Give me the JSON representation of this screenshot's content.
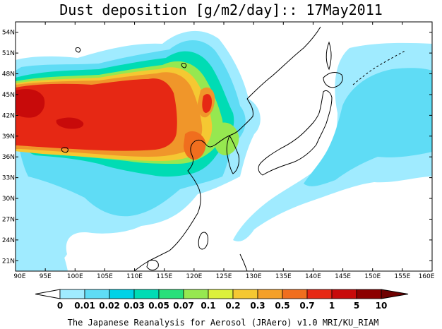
{
  "title": "Dust deposition [g/m2/day]:: 17May2011",
  "credit": "The Japanese Reanalysis for Aerosol (JRAero) v1.0 MRI/KU_RIAM",
  "map": {
    "lon_range": [
      90,
      160
    ],
    "lat_range": [
      19.5,
      55.5
    ],
    "lon_ticks": [
      "90E",
      "95E",
      "100E",
      "105E",
      "110E",
      "115E",
      "120E",
      "125E",
      "130E",
      "135E",
      "140E",
      "145E",
      "150E",
      "155E",
      "160E"
    ],
    "lat_ticks": [
      "54N",
      "51N",
      "48N",
      "45N",
      "42N",
      "39N",
      "36N",
      "33N",
      "30N",
      "27N",
      "24N",
      "21N"
    ]
  },
  "colorbar": {
    "labels": [
      "0",
      "0.01",
      "0.02",
      "0.03",
      "0.05",
      "0.07",
      "0.1",
      "0.2",
      "0.3",
      "0.5",
      "0.7",
      "1",
      "5",
      "10"
    ],
    "colors": [
      "#ffffff",
      "#a0ebff",
      "#5fdcf5",
      "#00d2e6",
      "#00dcb4",
      "#28e07a",
      "#96e850",
      "#dcf03c",
      "#f5c832",
      "#f5a028",
      "#f06e1e",
      "#e62814",
      "#c80a0a",
      "#8c0000",
      "#6e0000"
    ]
  }
}
